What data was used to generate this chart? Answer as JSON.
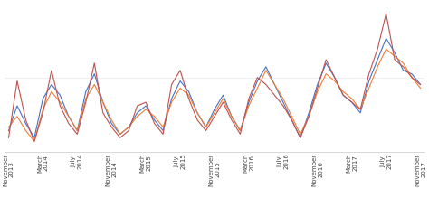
{
  "background_color": "#ffffff",
  "line_colors": [
    "#4472C4",
    "#ED7D31",
    "#C0504D"
  ],
  "line_width": 0.8,
  "x_tick_labels": [
    "November\n2013",
    "March\n2014",
    "July\n2014",
    "November\n2014",
    "March\n2015",
    "July\n2015",
    "November\n2015",
    "March\n2016",
    "July\n2016",
    "November\n2016",
    "March\n2017",
    "July\n2017",
    "November\n2017"
  ],
  "x_tick_positions": [
    0,
    4,
    8,
    12,
    16,
    20,
    24,
    28,
    32,
    36,
    40,
    44,
    48
  ],
  "series_blue": [
    5,
    12,
    7,
    3,
    14,
    18,
    15,
    9,
    5,
    16,
    21,
    13,
    7,
    4,
    6,
    10,
    12,
    8,
    5,
    14,
    19,
    16,
    10,
    6,
    11,
    15,
    9,
    5,
    13,
    19,
    23,
    18,
    13,
    8,
    3,
    10,
    18,
    24,
    20,
    15,
    13,
    10,
    19,
    25,
    31,
    27,
    22,
    21,
    18
  ],
  "series_orange": [
    6,
    9,
    5,
    2,
    11,
    16,
    13,
    9,
    5,
    14,
    18,
    13,
    8,
    4,
    6,
    9,
    11,
    9,
    6,
    13,
    17,
    15,
    10,
    6,
    10,
    14,
    9,
    5,
    12,
    17,
    22,
    18,
    14,
    9,
    4,
    9,
    16,
    21,
    19,
    16,
    14,
    11,
    17,
    23,
    28,
    26,
    24,
    20,
    17
  ],
  "series_red": [
    3,
    19,
    8,
    2,
    10,
    22,
    12,
    7,
    4,
    13,
    24,
    10,
    6,
    3,
    5,
    12,
    13,
    7,
    4,
    18,
    22,
    14,
    8,
    5,
    9,
    13,
    8,
    4,
    14,
    20,
    18,
    15,
    12,
    8,
    3,
    9,
    17,
    25,
    20,
    15,
    13,
    11,
    21,
    28,
    38,
    25,
    23,
    20,
    18
  ],
  "ylim_min": -1,
  "ylim_max": 40,
  "xlim_min": -0.5,
  "xlim_max": 48.5,
  "tick_fontsize": 5.0,
  "spine_color": "#c8c8c8"
}
